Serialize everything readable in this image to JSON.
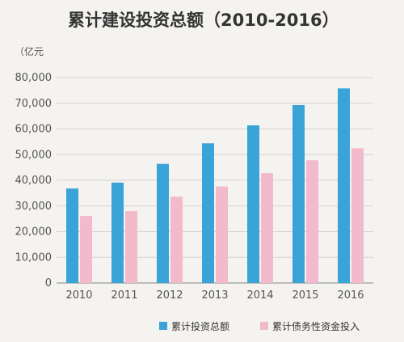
{
  "chart_data": {
    "type": "bar",
    "title": "累计建设投资总额（2010-2016）",
    "unit": "（亿元",
    "categories": [
      "2010",
      "2011",
      "2012",
      "2013",
      "2014",
      "2015",
      "2016"
    ],
    "ylim": [
      0,
      80000
    ],
    "yticks": [
      0,
      10000,
      20000,
      30000,
      40000,
      50000,
      60000,
      70000,
      80000
    ],
    "ytick_labels": [
      "0",
      "10,000",
      "20,000",
      "30,000",
      "40,000",
      "50,000",
      "60,000",
      "70,000",
      "80,000"
    ],
    "grid": true,
    "legend_position": "bottom-right",
    "series": [
      {
        "name": "累计投资总额",
        "color": "#3aa3d8",
        "values": [
          36800,
          39100,
          46400,
          54400,
          61400,
          69300,
          75800
        ]
      },
      {
        "name": "累计债务性资金投入",
        "color": "#f3b9cc",
        "values": [
          26100,
          28000,
          33600,
          37600,
          42800,
          47800,
          52500
        ]
      }
    ]
  }
}
